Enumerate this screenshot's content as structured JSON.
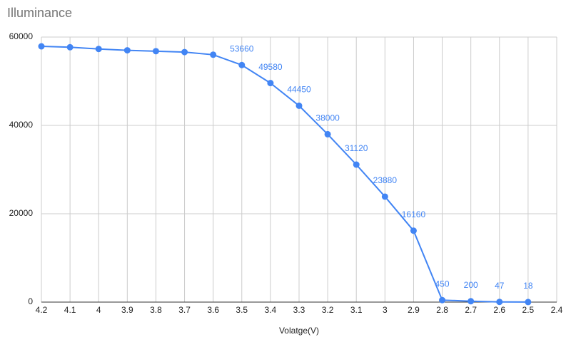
{
  "chart_data": {
    "type": "line",
    "title": "Illuminance",
    "x_label": "Volatge(V)",
    "categories": [
      "4.2",
      "4.1",
      "4",
      "3.9",
      "3.8",
      "3.7",
      "3.6",
      "3.5",
      "3.4",
      "3.3",
      "3.2",
      "3.1",
      "3",
      "2.9",
      "2.8",
      "2.7",
      "2.6",
      "2.5",
      "2.4"
    ],
    "series": [
      {
        "color": "#4285f4",
        "values": [
          57900,
          57700,
          57300,
          57000,
          56800,
          56600,
          56000,
          53660,
          49580,
          44450,
          38000,
          31120,
          23880,
          16160,
          450,
          200,
          47,
          18,
          null
        ],
        "show_labels": [
          false,
          false,
          false,
          false,
          false,
          false,
          false,
          true,
          true,
          true,
          true,
          true,
          true,
          true,
          true,
          true,
          true,
          true,
          false
        ]
      }
    ],
    "ylim": [
      0,
      60000
    ],
    "yticks": [
      0,
      20000,
      40000,
      60000
    ],
    "grid": true
  }
}
